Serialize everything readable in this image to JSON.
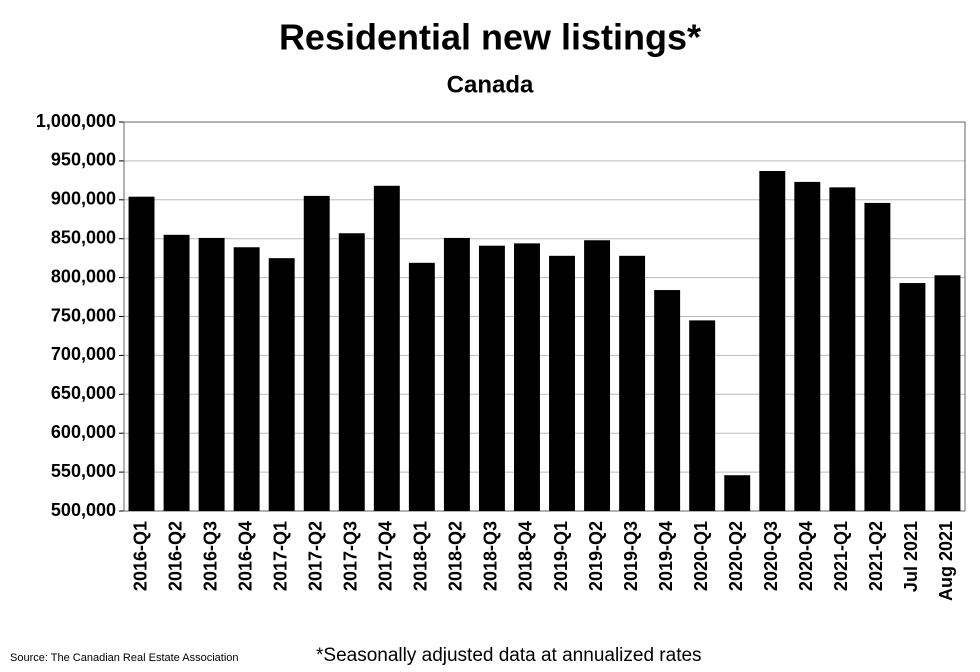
{
  "chart_data": {
    "type": "bar",
    "title": "Residential new listings*",
    "subtitle": "Canada",
    "categories": [
      "2016-Q1",
      "2016-Q2",
      "2016-Q3",
      "2016-Q4",
      "2017-Q1",
      "2017-Q2",
      "2017-Q3",
      "2017-Q4",
      "2018-Q1",
      "2018-Q2",
      "2018-Q3",
      "2018-Q4",
      "2019-Q1",
      "2019-Q2",
      "2019-Q3",
      "2019-Q4",
      "2020-Q1",
      "2020-Q2",
      "2020-Q3",
      "2020-Q4",
      "2021-Q1",
      "2021-Q2",
      "Jul 2021",
      "Aug 2021"
    ],
    "values": [
      904000,
      855000,
      851000,
      839000,
      825000,
      905000,
      857000,
      918000,
      819000,
      851000,
      841000,
      844000,
      828000,
      848000,
      828000,
      784000,
      745000,
      546000,
      937000,
      923000,
      916000,
      896000,
      793000,
      803000
    ],
    "color": "#000000",
    "ylim": [
      500000,
      1000000
    ],
    "yticks": [
      {
        "value": 500000,
        "label": "500,000"
      },
      {
        "value": 550000,
        "label": "550,000"
      },
      {
        "value": 600000,
        "label": "600,000"
      },
      {
        "value": 650000,
        "label": "650,000"
      },
      {
        "value": 700000,
        "label": "700,000"
      },
      {
        "value": 750000,
        "label": "750,000"
      },
      {
        "value": 800000,
        "label": "800,000"
      },
      {
        "value": 850000,
        "label": "850,000"
      },
      {
        "value": 900000,
        "label": "900,000"
      },
      {
        "value": 950000,
        "label": "950,000"
      },
      {
        "value": 1000000,
        "label": "1,000,000"
      }
    ],
    "grid": true,
    "source": "Source: The Canadian Real Estate Association",
    "note": "*Seasonally adjusted data at annualized rates"
  }
}
